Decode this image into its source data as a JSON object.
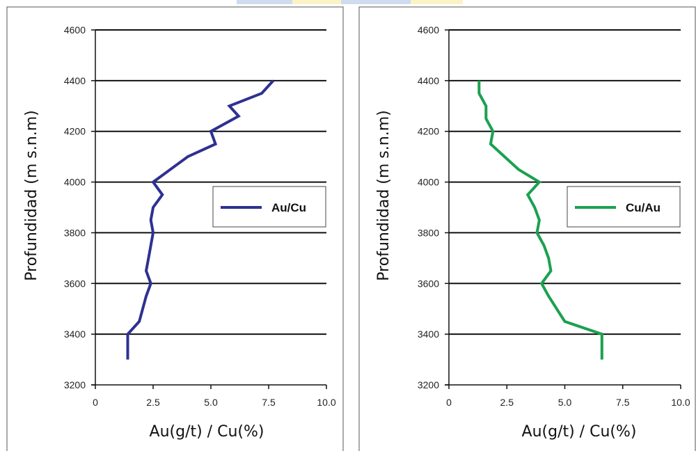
{
  "chart_data": [
    {
      "type": "line",
      "xlabel": "Au(g/t) / Cu(%)",
      "ylabel": "Profundidad (m s.n.m)",
      "xlim": [
        0,
        10
      ],
      "ylim": [
        3200,
        4600
      ],
      "xticks": [
        "0",
        "2.5",
        "5.0",
        "7.5",
        "10.0"
      ],
      "yticks": [
        "3200",
        "3400",
        "3600",
        "3800",
        "4000",
        "4200",
        "4400",
        "4600"
      ],
      "grid": "horizontal",
      "legend": "right",
      "series": [
        {
          "name": "Au/Cu",
          "color": "#2e3191",
          "points": [
            {
              "x": 7.7,
              "y": 4400
            },
            {
              "x": 7.2,
              "y": 4350
            },
            {
              "x": 5.8,
              "y": 4300
            },
            {
              "x": 6.2,
              "y": 4260
            },
            {
              "x": 5.0,
              "y": 4200
            },
            {
              "x": 5.2,
              "y": 4150
            },
            {
              "x": 4.0,
              "y": 4100
            },
            {
              "x": 2.5,
              "y": 4000
            },
            {
              "x": 2.9,
              "y": 3950
            },
            {
              "x": 2.5,
              "y": 3900
            },
            {
              "x": 2.4,
              "y": 3850
            },
            {
              "x": 2.5,
              "y": 3800
            },
            {
              "x": 2.4,
              "y": 3750
            },
            {
              "x": 2.3,
              "y": 3700
            },
            {
              "x": 2.2,
              "y": 3650
            },
            {
              "x": 2.4,
              "y": 3600
            },
            {
              "x": 2.2,
              "y": 3550
            },
            {
              "x": 1.9,
              "y": 3450
            },
            {
              "x": 1.4,
              "y": 3400
            },
            {
              "x": 1.4,
              "y": 3300
            }
          ]
        }
      ]
    },
    {
      "type": "line",
      "xlabel": "Au(g/t) / Cu(%)",
      "ylabel": "Profundidad (m s.n.m)",
      "xlim": [
        0,
        10
      ],
      "ylim": [
        3200,
        4600
      ],
      "xticks": [
        "0",
        "2.5",
        "5.0",
        "7.5",
        "10.0"
      ],
      "yticks": [
        "3200",
        "3400",
        "3600",
        "3800",
        "4000",
        "4200",
        "4400",
        "4600"
      ],
      "grid": "horizontal",
      "legend": "right",
      "series": [
        {
          "name": "Cu/Au",
          "color": "#1aa150",
          "points": [
            {
              "x": 1.3,
              "y": 4400
            },
            {
              "x": 1.3,
              "y": 4350
            },
            {
              "x": 1.6,
              "y": 4300
            },
            {
              "x": 1.6,
              "y": 4250
            },
            {
              "x": 1.9,
              "y": 4200
            },
            {
              "x": 1.8,
              "y": 4150
            },
            {
              "x": 2.4,
              "y": 4100
            },
            {
              "x": 3.0,
              "y": 4050
            },
            {
              "x": 3.9,
              "y": 4000
            },
            {
              "x": 3.4,
              "y": 3950
            },
            {
              "x": 3.7,
              "y": 3900
            },
            {
              "x": 3.9,
              "y": 3850
            },
            {
              "x": 3.8,
              "y": 3800
            },
            {
              "x": 4.1,
              "y": 3750
            },
            {
              "x": 4.3,
              "y": 3700
            },
            {
              "x": 4.4,
              "y": 3650
            },
            {
              "x": 4.0,
              "y": 3600
            },
            {
              "x": 4.3,
              "y": 3550
            },
            {
              "x": 5.0,
              "y": 3450
            },
            {
              "x": 6.6,
              "y": 3400
            },
            {
              "x": 6.6,
              "y": 3350
            },
            {
              "x": 6.6,
              "y": 3300
            }
          ]
        }
      ]
    }
  ]
}
